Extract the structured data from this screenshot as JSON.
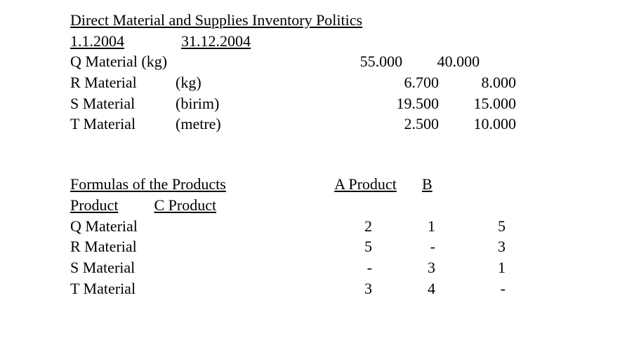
{
  "section1": {
    "title": "Direct Material and Supplies",
    "title2": " Inventory Politics",
    "date1": "1.1.2004",
    "date2": "31.12.2004",
    "rows": [
      {
        "name": "Q Material (kg)",
        "unit": "",
        "v1": "55.000",
        "v2": "40.000",
        "pad": 215
      },
      {
        "name": "R Material",
        "unit": "(kg)",
        "v1": "6.700",
        "v2": "8.000",
        "pad": 175
      },
      {
        "name": "S Material",
        "unit": "(birim)",
        "v1": "19.500",
        "v2": "15.000",
        "pad": 175
      },
      {
        "name": "T Material",
        "unit": "(metre)",
        "v1": "2.500",
        "v2": "10.000",
        "pad": 175
      }
    ]
  },
  "section2": {
    "heading_left": "Formulas of the Products",
    "heading_a": "A Product",
    "heading_b": "B",
    "wrap1": "Product",
    "wrap2": "C Product",
    "rows": [
      {
        "name": "Q Material",
        "c1": "2",
        "c2": "1",
        "c3": "5"
      },
      {
        "name": "R Material",
        "c1": "5",
        "c2": "-",
        "c3": "3"
      },
      {
        "name": "S Material",
        "c1": "-",
        "c2": "3",
        "c3": "1"
      },
      {
        "name": "T Material",
        "c1": "3",
        "c2": "4",
        "c3": "-"
      }
    ]
  }
}
